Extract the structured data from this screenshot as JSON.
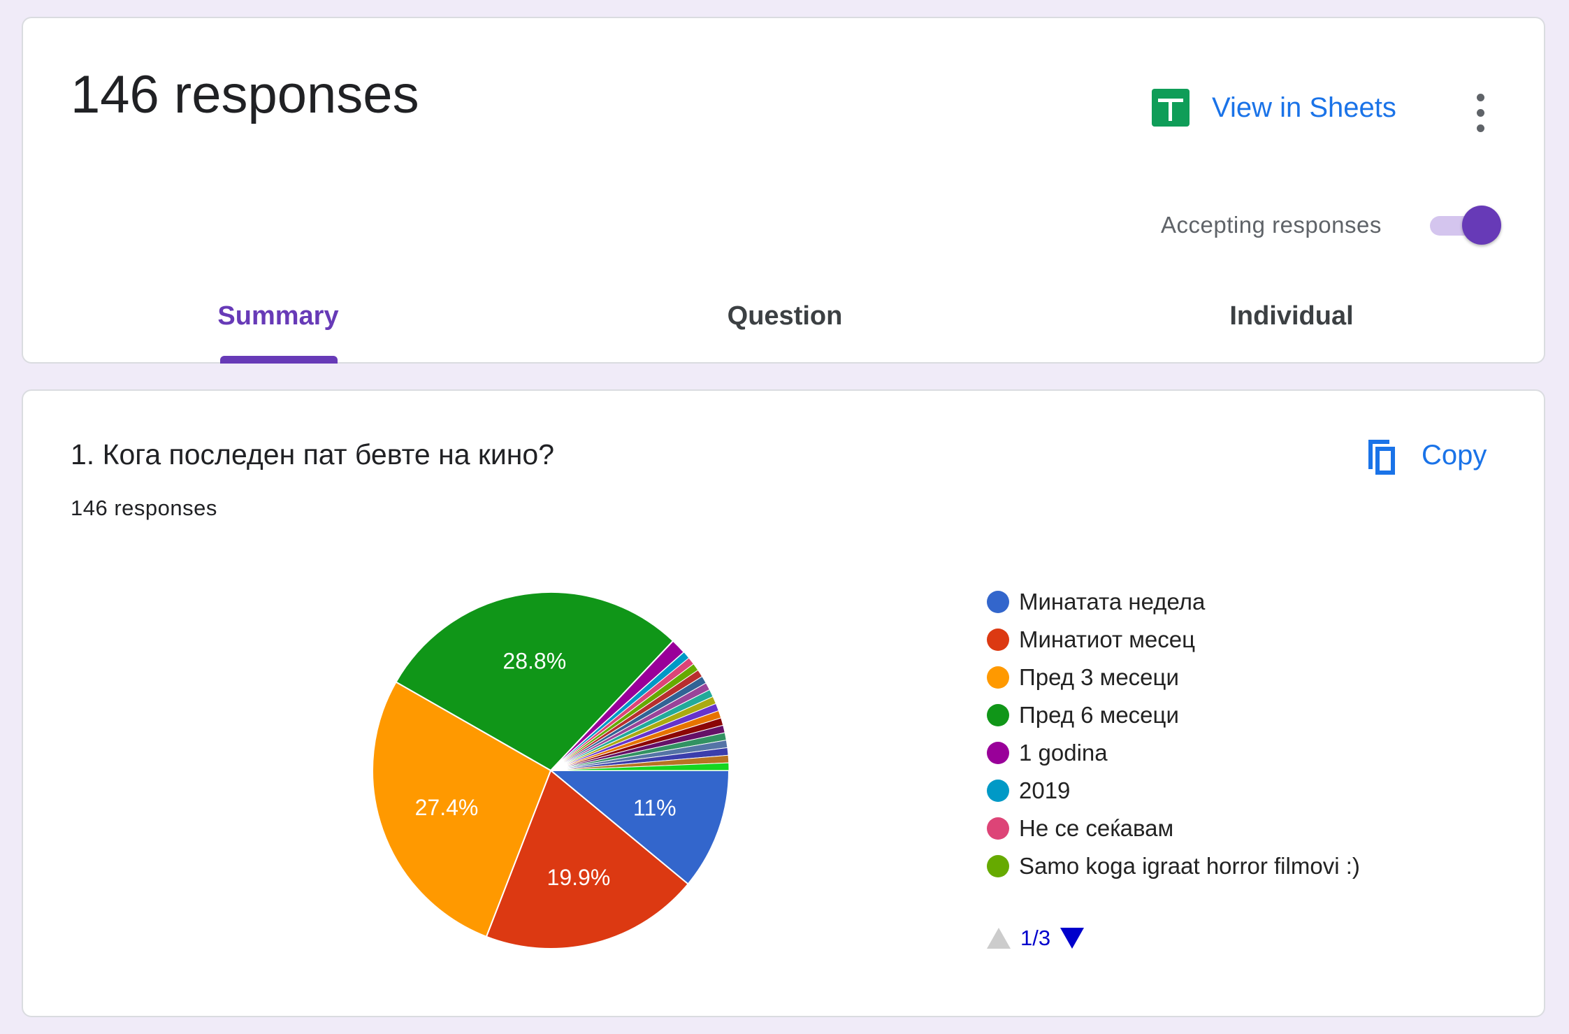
{
  "header": {
    "responses_title": "146 responses",
    "view_in_sheets_label": "View in Sheets",
    "accepting_label": "Accepting responses",
    "accepting_on": true,
    "tabs": [
      {
        "label": "Summary",
        "active": true
      },
      {
        "label": "Question",
        "active": false
      },
      {
        "label": "Individual",
        "active": false
      }
    ],
    "icons": {
      "sheets": "sheets-icon",
      "more": "more-vert-icon",
      "copy": "copy-icon"
    }
  },
  "question": {
    "title": "1. Кога последен пат бевте на кино?",
    "responses_count": "146 responses",
    "copy_label": "Copy"
  },
  "legend": {
    "items": [
      {
        "label": "Минатата недела",
        "color": "#3366cc"
      },
      {
        "label": "Минатиот месец",
        "color": "#dc3912"
      },
      {
        "label": "Пред 3 месеци",
        "color": "#ff9900"
      },
      {
        "label": "Пред 6 месеци",
        "color": "#109618"
      },
      {
        "label": "1 godina",
        "color": "#990099"
      },
      {
        "label": "2019",
        "color": "#0099c6"
      },
      {
        "label": "Не се сеќавам",
        "color": "#dd4477"
      },
      {
        "label": "Samo koga igraat horror filmovi :)",
        "color": "#66aa00"
      }
    ],
    "pager": "1/3"
  },
  "chart_data": {
    "type": "pie",
    "start_angle_deg": 0,
    "direction": "clockwise",
    "slices": [
      {
        "value": 11.0,
        "label": "11%",
        "color": "#3366cc"
      },
      {
        "value": 19.9,
        "label": "19.9%",
        "color": "#dc3912"
      },
      {
        "value": 27.4,
        "label": "27.4%",
        "color": "#ff9900"
      },
      {
        "value": 28.8,
        "label": "28.8%",
        "color": "#109618"
      },
      {
        "value": 1.4,
        "color": "#990099"
      },
      {
        "value": 0.68,
        "color": "#0099c6"
      },
      {
        "value": 0.68,
        "color": "#dd4477"
      },
      {
        "value": 0.68,
        "color": "#66aa00"
      },
      {
        "value": 0.68,
        "color": "#b82e2e"
      },
      {
        "value": 0.68,
        "color": "#316395"
      },
      {
        "value": 0.68,
        "color": "#994499"
      },
      {
        "value": 0.68,
        "color": "#22aa99"
      },
      {
        "value": 0.68,
        "color": "#aaaa11"
      },
      {
        "value": 0.68,
        "color": "#6633cc"
      },
      {
        "value": 0.68,
        "color": "#e67300"
      },
      {
        "value": 0.68,
        "color": "#8b0707"
      },
      {
        "value": 0.68,
        "color": "#651067"
      },
      {
        "value": 0.68,
        "color": "#329262"
      },
      {
        "value": 0.68,
        "color": "#5574a6"
      },
      {
        "value": 0.68,
        "color": "#3b3eac"
      },
      {
        "value": 0.68,
        "color": "#b77322"
      },
      {
        "value": 0.68,
        "color": "#16d620"
      }
    ]
  }
}
